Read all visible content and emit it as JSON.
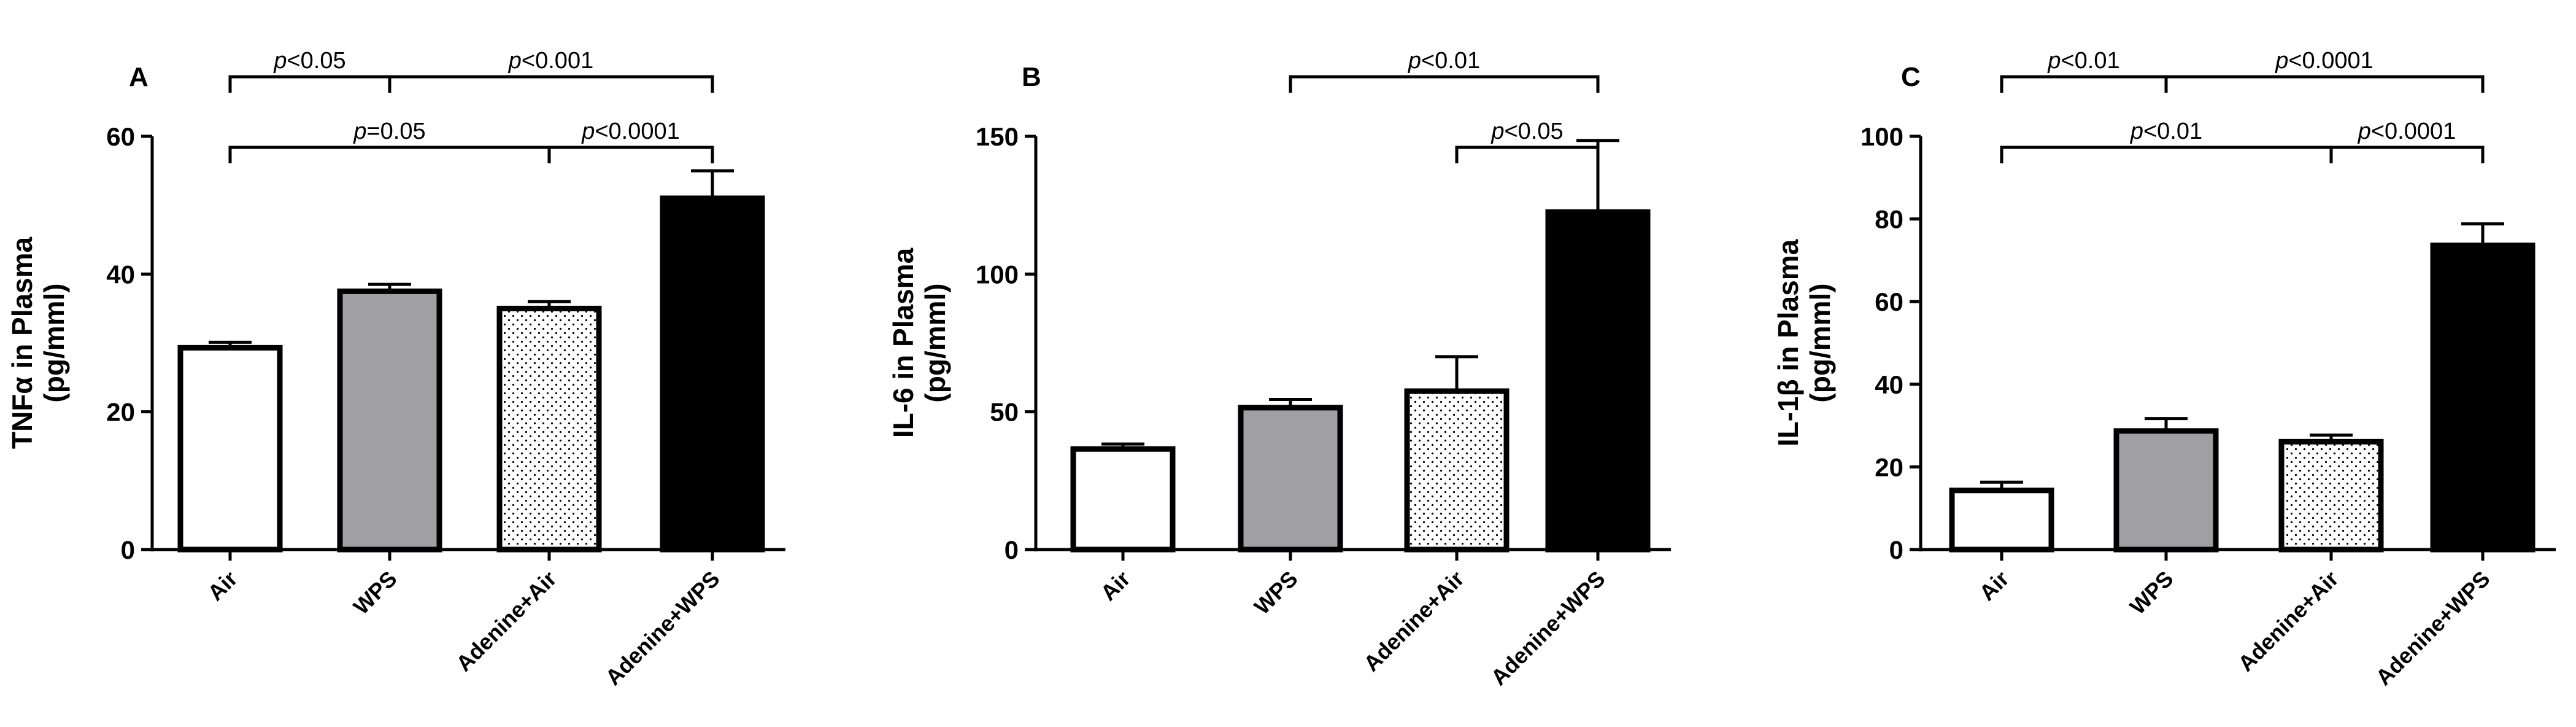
{
  "colors": {
    "air": "#ffffff",
    "wps": "#a0a0a3",
    "adenine_air_pattern": "dotted",
    "adenine_wps": "#000000",
    "outline": "#000000"
  },
  "chart_data": [
    {
      "type": "bar",
      "panel": "A",
      "ylabel_line1": "TNFα in Plasma",
      "ylabel_line2": "(pg/mml)",
      "ylim": [
        0,
        60
      ],
      "yticks": [
        0,
        20,
        40,
        60
      ],
      "ytick_labels": [
        "0",
        "20",
        "40",
        "60"
      ],
      "categories": [
        "Air",
        "WPS",
        "Adenine+Air",
        "Adenine+WPS"
      ],
      "values": [
        29.3,
        37.5,
        35.0,
        51.0
      ],
      "errors": [
        0.8,
        1.0,
        1.0,
        4.0
      ],
      "significance": [
        {
          "from": 0,
          "to": 1,
          "level": 1,
          "prefix": "p",
          "text": "<0.05"
        },
        {
          "from": 1,
          "to": 3,
          "level": 1,
          "prefix": "p",
          "text": "<0.001"
        },
        {
          "from": 0,
          "to": 2,
          "level": 0,
          "prefix": "p",
          "text": "=0.05"
        },
        {
          "from": 2,
          "to": 3,
          "level": 0,
          "prefix": "p",
          "text": "<0.0001"
        }
      ]
    },
    {
      "type": "bar",
      "panel": "B",
      "ylabel_line1": "IL-6 in Plasma",
      "ylabel_line2": "(pg/mml)",
      "ylim": [
        0,
        150
      ],
      "yticks": [
        0,
        50,
        100,
        150
      ],
      "ytick_labels": [
        "0",
        "50",
        "100",
        "150"
      ],
      "categories": [
        "Air",
        "WPS",
        "Adenine+Air",
        "Adenine+WPS"
      ],
      "values": [
        36.5,
        51.5,
        57.5,
        122.5
      ],
      "errors": [
        1.8,
        3.0,
        12.5,
        26.0
      ],
      "significance": [
        {
          "from": 1,
          "to": 3,
          "level": 1,
          "prefix": "p",
          "text": "<0.01"
        },
        {
          "from": 2,
          "to": 3,
          "level": 0,
          "prefix": "p",
          "text": "<0.05"
        }
      ]
    },
    {
      "type": "bar",
      "panel": "C",
      "ylabel_line1": "IL-1β in Plasma",
      "ylabel_line2": "(pg/mml)",
      "ylim": [
        0,
        100
      ],
      "yticks": [
        0,
        20,
        40,
        60,
        80,
        100
      ],
      "ytick_labels": [
        "0",
        "20",
        "40",
        "60",
        "80",
        "100"
      ],
      "categories": [
        "Air",
        "WPS",
        "Adenine+Air",
        "Adenine+WPS"
      ],
      "values": [
        14.3,
        28.7,
        26.1,
        73.6
      ],
      "errors": [
        2.0,
        3.0,
        1.6,
        5.2
      ],
      "significance": [
        {
          "from": 0,
          "to": 1,
          "level": 1,
          "prefix": "p",
          "text": "<0.01"
        },
        {
          "from": 1,
          "to": 3,
          "level": 1,
          "prefix": "p",
          "text": "<0.0001"
        },
        {
          "from": 0,
          "to": 2,
          "level": 0,
          "prefix": "p",
          "text": "<0.01"
        },
        {
          "from": 2,
          "to": 3,
          "level": 0,
          "prefix": "p",
          "text": "<0.0001"
        }
      ]
    }
  ]
}
